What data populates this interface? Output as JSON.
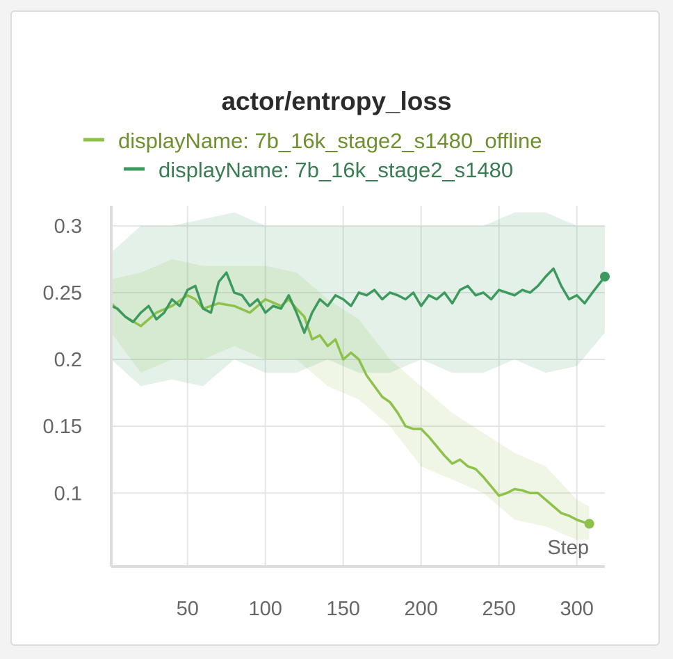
{
  "chart_data": {
    "type": "line",
    "title": "actor/entropy_loss",
    "xlabel": "Step",
    "ylabel": "",
    "xlim": [
      1,
      318
    ],
    "ylim": [
      0.045,
      0.315
    ],
    "x_ticks": [
      50,
      100,
      150,
      200,
      250,
      300
    ],
    "x_tick_labels": [
      "50",
      "100",
      "150",
      "200",
      "250",
      "300"
    ],
    "y_ticks": [
      0.1,
      0.15,
      0.2,
      0.25,
      0.3
    ],
    "y_tick_labels": [
      "0.1",
      "0.15",
      "0.2",
      "0.25",
      "0.3"
    ],
    "grid": true,
    "legend": "top-center",
    "series": [
      {
        "name": "displayName: 7b_16k_stage2_s1480_offline",
        "color": "#8dc24a",
        "smoothed": {
          "x": [
            1,
            10,
            20,
            30,
            40,
            50,
            55,
            60,
            70,
            80,
            90,
            100,
            110,
            115,
            120,
            125,
            130,
            135,
            140,
            145,
            150,
            155,
            160,
            165,
            170,
            175,
            180,
            185,
            190,
            195,
            200,
            205,
            210,
            215,
            220,
            225,
            230,
            235,
            240,
            245,
            250,
            255,
            260,
            265,
            270,
            275,
            280,
            285,
            290,
            295,
            300,
            305,
            308
          ],
          "y": [
            0.242,
            0.232,
            0.225,
            0.235,
            0.24,
            0.248,
            0.245,
            0.238,
            0.242,
            0.24,
            0.235,
            0.245,
            0.24,
            0.245,
            0.238,
            0.232,
            0.215,
            0.218,
            0.21,
            0.215,
            0.2,
            0.205,
            0.2,
            0.188,
            0.18,
            0.172,
            0.168,
            0.16,
            0.15,
            0.148,
            0.148,
            0.142,
            0.135,
            0.128,
            0.122,
            0.125,
            0.12,
            0.118,
            0.112,
            0.105,
            0.098,
            0.1,
            0.103,
            0.102,
            0.1,
            0.1,
            0.095,
            0.09,
            0.085,
            0.083,
            0.08,
            0.078,
            0.077
          ]
        },
        "raw_range": {
          "x": [
            1,
            20,
            40,
            60,
            80,
            100,
            120,
            140,
            160,
            180,
            200,
            220,
            240,
            260,
            280,
            300,
            308
          ],
          "low": [
            0.22,
            0.19,
            0.2,
            0.2,
            0.21,
            0.2,
            0.2,
            0.18,
            0.17,
            0.15,
            0.12,
            0.11,
            0.1,
            0.08,
            0.075,
            0.065,
            0.065
          ],
          "high": [
            0.26,
            0.265,
            0.275,
            0.27,
            0.27,
            0.27,
            0.265,
            0.245,
            0.23,
            0.2,
            0.18,
            0.16,
            0.145,
            0.13,
            0.12,
            0.095,
            0.09
          ]
        }
      },
      {
        "name": "displayName: 7b_16k_stage2_s1480",
        "color": "#3d9a5e",
        "smoothed": {
          "x": [
            1,
            5,
            10,
            15,
            20,
            25,
            30,
            35,
            40,
            45,
            50,
            55,
            60,
            65,
            70,
            75,
            80,
            85,
            90,
            95,
            100,
            105,
            110,
            115,
            120,
            125,
            130,
            135,
            140,
            145,
            150,
            155,
            160,
            165,
            170,
            175,
            180,
            185,
            190,
            195,
            200,
            205,
            210,
            215,
            220,
            225,
            230,
            235,
            240,
            245,
            250,
            255,
            260,
            265,
            270,
            275,
            280,
            285,
            290,
            295,
            300,
            305,
            310,
            318
          ],
          "y": [
            0.24,
            0.238,
            0.232,
            0.228,
            0.235,
            0.24,
            0.23,
            0.235,
            0.245,
            0.24,
            0.252,
            0.255,
            0.238,
            0.235,
            0.258,
            0.265,
            0.25,
            0.248,
            0.24,
            0.245,
            0.235,
            0.24,
            0.238,
            0.248,
            0.235,
            0.22,
            0.235,
            0.245,
            0.24,
            0.248,
            0.245,
            0.24,
            0.25,
            0.248,
            0.252,
            0.245,
            0.25,
            0.248,
            0.245,
            0.25,
            0.24,
            0.248,
            0.245,
            0.25,
            0.242,
            0.252,
            0.255,
            0.248,
            0.25,
            0.245,
            0.252,
            0.25,
            0.248,
            0.252,
            0.25,
            0.255,
            0.262,
            0.268,
            0.255,
            0.245,
            0.248,
            0.242,
            0.25,
            0.262
          ]
        },
        "raw_range": {
          "x": [
            1,
            20,
            40,
            60,
            80,
            100,
            120,
            140,
            160,
            180,
            200,
            220,
            240,
            260,
            280,
            300,
            318
          ],
          "low": [
            0.2,
            0.18,
            0.185,
            0.18,
            0.2,
            0.19,
            0.19,
            0.2,
            0.19,
            0.19,
            0.2,
            0.19,
            0.19,
            0.2,
            0.19,
            0.195,
            0.22
          ],
          "high": [
            0.28,
            0.3,
            0.3,
            0.305,
            0.31,
            0.3,
            0.3,
            0.3,
            0.3,
            0.3,
            0.3,
            0.3,
            0.3,
            0.31,
            0.31,
            0.3,
            0.3
          ]
        }
      }
    ]
  }
}
